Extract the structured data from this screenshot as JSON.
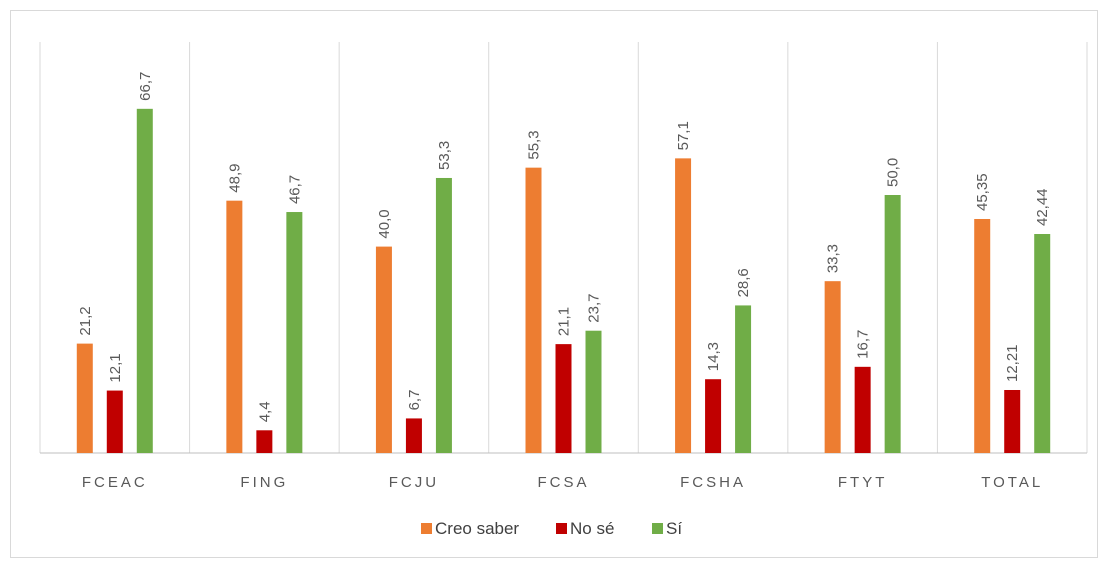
{
  "chart_data": {
    "type": "bar",
    "categories": [
      "FCEAC",
      "FING",
      "FCJU",
      "FCSA",
      "FCSHA",
      "FTYT",
      "TOTAL"
    ],
    "series": [
      {
        "name": "Creo saber",
        "color": "#ED7D31",
        "values": [
          21.2,
          48.9,
          40.0,
          55.3,
          57.1,
          33.3,
          45.35
        ],
        "labels": [
          "21,2",
          "48,9",
          "40,0",
          "55,3",
          "57,1",
          "33,3",
          "45,35"
        ]
      },
      {
        "name": "No sé",
        "color": "#C00000",
        "values": [
          12.1,
          4.4,
          6.7,
          21.1,
          14.3,
          16.7,
          12.21
        ],
        "labels": [
          "12,1",
          "4,4",
          "6,7",
          "21,1",
          "14,3",
          "16,7",
          "12,21"
        ]
      },
      {
        "name": "Sí",
        "color": "#70AD47",
        "values": [
          66.7,
          46.7,
          53.3,
          23.7,
          28.6,
          50.0,
          42.44
        ],
        "labels": [
          "66,7",
          "46,7",
          "53,3",
          "23,7",
          "28,6",
          "50,0",
          "42,44"
        ]
      }
    ],
    "ylim": [
      0,
      70
    ],
    "grid": false,
    "legend": "bottom",
    "title": "",
    "xlabel": "",
    "ylabel": ""
  }
}
